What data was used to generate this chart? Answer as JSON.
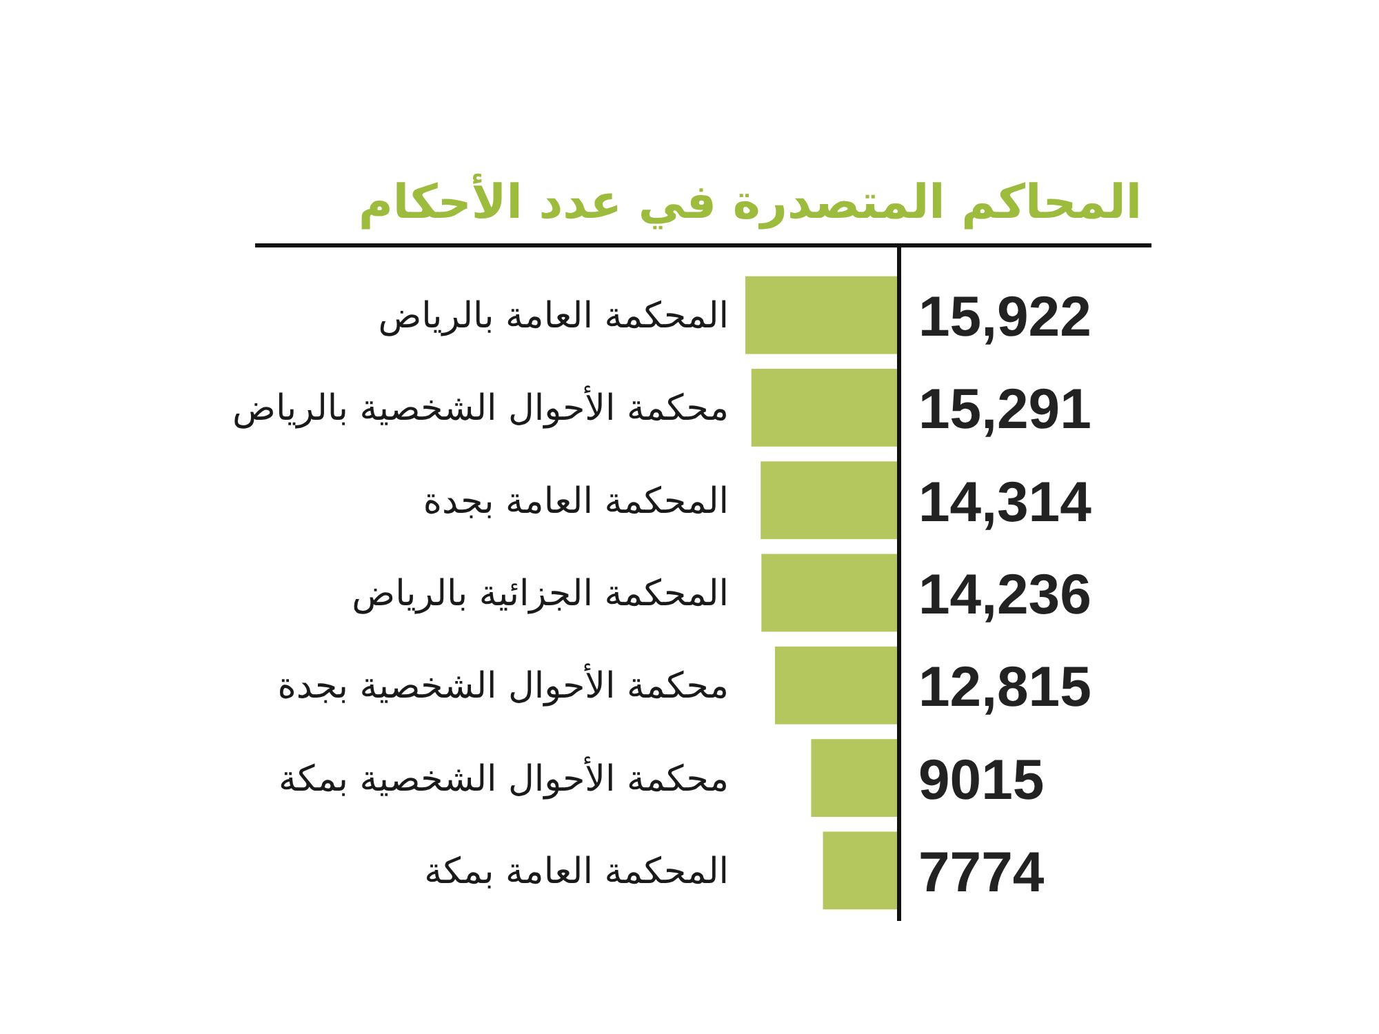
{
  "chart_data": {
    "type": "bar",
    "orientation": "horizontal",
    "title": "المحاكم المتصدرة في عدد الأحكام",
    "categories": [
      "المحكمة العامة بالرياض",
      "محكمة الأحوال الشخصية بالرياض",
      "المحكمة العامة بجدة",
      "المحكمة الجزائية بالرياض",
      "محكمة الأحوال الشخصية بجدة",
      "محكمة الأحوال الشخصية بمكة",
      "المحكمة العامة بمكة"
    ],
    "values": [
      15922,
      15291,
      14314,
      14236,
      12815,
      9015,
      7774
    ],
    "value_labels": [
      "15,922",
      "15,291",
      "14,314",
      "14,236",
      "12,815",
      "9015",
      "7774"
    ],
    "color": "#b4c75e"
  }
}
